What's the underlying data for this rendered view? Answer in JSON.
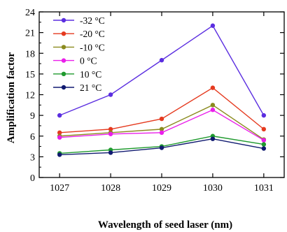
{
  "chart_data": {
    "type": "line",
    "title": "",
    "xlabel": "Wavelength of seed laser (nm)",
    "ylabel": "Amplification factor",
    "x": [
      1027,
      1028,
      1029,
      1030,
      1031
    ],
    "xlim": [
      1026.6,
      1031.4
    ],
    "xticks": [
      "1027",
      "1028",
      "1029",
      "1030",
      "1031"
    ],
    "ylim": [
      0,
      24
    ],
    "yticks": [
      "0",
      "3",
      "6",
      "9",
      "12",
      "15",
      "18",
      "21",
      "24"
    ],
    "grid": false,
    "legend": "top-left",
    "series": [
      {
        "name": "-32 °C",
        "color": "#5b2ee0",
        "values": [
          9.0,
          12.0,
          17.0,
          22.0,
          9.0
        ]
      },
      {
        "name": "-20 °C",
        "color": "#e53a1f",
        "values": [
          6.5,
          7.0,
          8.5,
          13.0,
          7.0
        ]
      },
      {
        "name": "-10 °C",
        "color": "#8a8a1e",
        "values": [
          6.0,
          6.5,
          7.0,
          10.5,
          5.5
        ]
      },
      {
        "name": "0 °C",
        "color": "#ea1fea",
        "values": [
          5.8,
          6.3,
          6.5,
          9.8,
          5.4
        ]
      },
      {
        "name": "10 °C",
        "color": "#1f9a2e",
        "values": [
          3.5,
          4.0,
          4.5,
          6.0,
          4.8
        ]
      },
      {
        "name": "21 °C",
        "color": "#101a70",
        "values": [
          3.3,
          3.6,
          4.3,
          5.6,
          4.2
        ]
      }
    ]
  }
}
